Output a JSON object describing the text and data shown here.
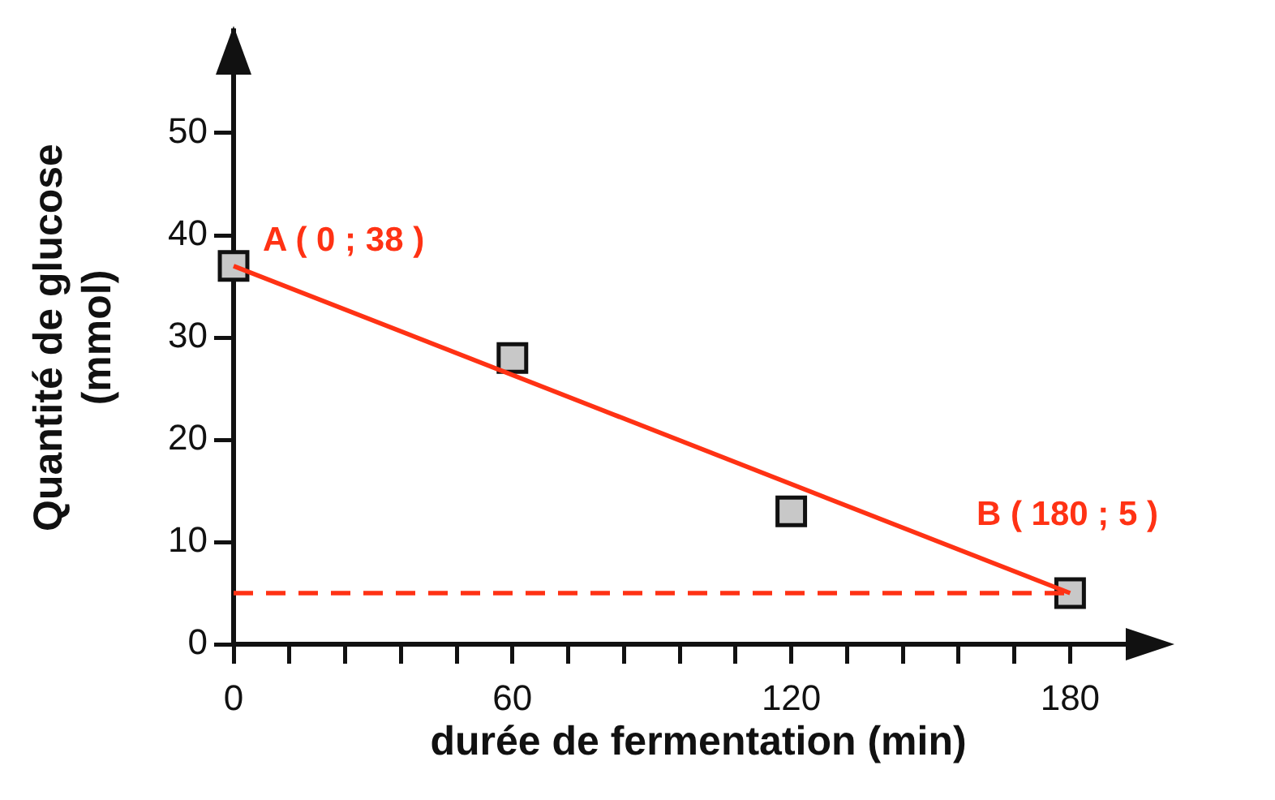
{
  "chart_data": {
    "type": "scatter",
    "xlabel": "durée de fermentation (min)",
    "ylabel": "Quantité de glucose\n(mmol)",
    "xlim": [
      0,
      200
    ],
    "ylim": [
      0,
      60
    ],
    "xticks": [
      0,
      {
        "value": 12,
        "label": null
      },
      {
        "value": 24,
        "label": null
      },
      {
        "value": 36,
        "label": null
      },
      {
        "value": 48,
        "label": null
      },
      60,
      {
        "value": 72,
        "label": null
      },
      {
        "value": 84,
        "label": null
      },
      {
        "value": 96,
        "label": null
      },
      {
        "value": 108,
        "label": null
      },
      120,
      {
        "value": 132,
        "label": null
      },
      {
        "value": 144,
        "label": null
      },
      {
        "value": 156,
        "label": null
      },
      {
        "value": 168,
        "label": null
      },
      180
    ],
    "yticks": [
      0,
      10,
      20,
      30,
      40,
      50
    ],
    "series": [
      {
        "type": "scatter",
        "x": [
          0,
          60,
          120,
          180
        ],
        "values": [
          37,
          28,
          13,
          5
        ],
        "color": "#c8c8c8",
        "marker": "square"
      },
      {
        "type": "line",
        "x": [
          0,
          180
        ],
        "values": [
          37,
          5
        ],
        "color": "#ff3214",
        "marker": "none",
        "line_style": "solid"
      },
      {
        "type": "line",
        "x": [
          0,
          180
        ],
        "values": [
          5,
          5
        ],
        "color": "#ff3214",
        "marker": "none",
        "line_style": "dashed"
      }
    ],
    "annotations": [
      {
        "text": "A ( 0 ; 38 )",
        "x": 0,
        "y": 37
      },
      {
        "text": "B ( 180 ; 5 )",
        "x": 180,
        "y": 5
      }
    ],
    "legend": false
  }
}
